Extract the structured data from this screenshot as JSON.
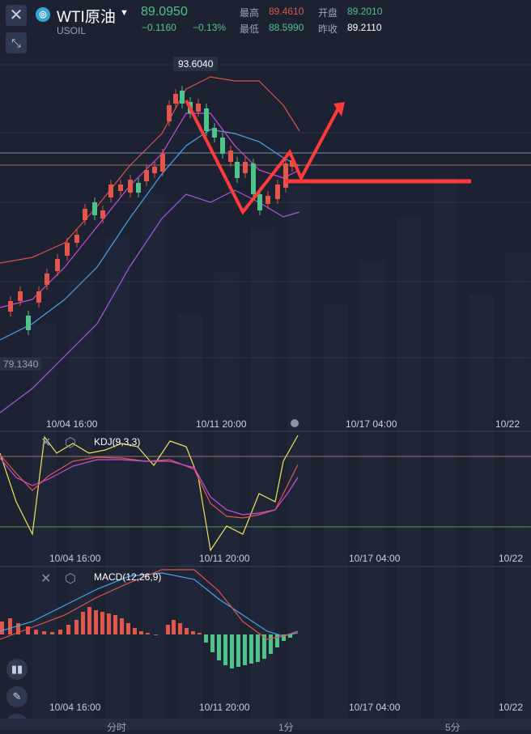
{
  "header": {
    "symbol_name": "WTI原油",
    "symbol_code": "USOIL",
    "symbol_icon": "coin-icon",
    "last_price": "89.0950",
    "change": "−0.1160",
    "change_pct": "−0.13%",
    "high_label": "最高",
    "high_value": "89.4610",
    "open_label": "开盘",
    "open_value": "89.2010",
    "low_label": "最低",
    "low_value": "88.5990",
    "prev_close_label": "昨收",
    "prev_close_value": "89.2110"
  },
  "main_chart": {
    "high_marker": "93.6040",
    "low_marker": "79.1340",
    "x_labels": [
      "10/04 16:00",
      "10/11 20:00",
      "10/17 04:00",
      "10/22"
    ]
  },
  "kdj": {
    "title": "KDJ(9,3,3)",
    "x_labels": [
      "10/04 16:00",
      "10/11 20:00",
      "10/17 04:00",
      "10/22"
    ]
  },
  "macd": {
    "title": "MACD(12,26,9)",
    "x_labels": [
      "10/04 16:00",
      "10/11 20:00",
      "10/17 04:00",
      "10/22"
    ]
  },
  "tabs": [
    "分时",
    "1分",
    "5分"
  ],
  "colors": {
    "background": "#1c2232",
    "up": "#e2574c",
    "down": "#4fc389",
    "boll_upper": "#d9534f",
    "boll_mid": "#4aa3e8",
    "boll_lower": "#a35be0",
    "annotation": "#ff3b3b"
  }
}
